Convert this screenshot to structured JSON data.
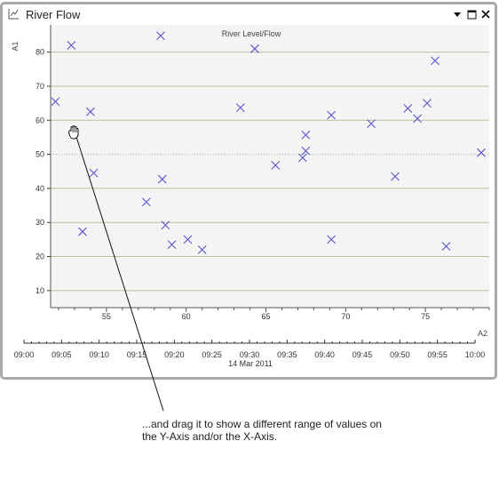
{
  "window": {
    "title": "River Flow",
    "icon": "chart-icon",
    "controls": [
      "menu-dropdown-icon",
      "maximize-icon",
      "close-icon"
    ]
  },
  "annotation": {
    "line1": "...and drag it to show a different range of values on",
    "line2": "the Y-Axis and/or the X-Axis."
  },
  "cursor": "hand-grab-icon",
  "chart_data": {
    "type": "scatter",
    "title": "River Level/Flow",
    "ylabel": "A1",
    "xlabel": "A2",
    "ylim": [
      5,
      88
    ],
    "xlim": [
      51.5,
      79
    ],
    "yticks": [
      10,
      20,
      30,
      40,
      50,
      60,
      70,
      80
    ],
    "xticks": [
      55,
      60,
      65,
      70,
      75
    ],
    "grid": true,
    "marker": "x",
    "marker_color": "#5a55cc",
    "points": [
      [
        51.8,
        65.5
      ],
      [
        52.8,
        82
      ],
      [
        53.5,
        27.3
      ],
      [
        54.0,
        62.5
      ],
      [
        54.2,
        44.5
      ],
      [
        57.5,
        36
      ],
      [
        58.4,
        84.8
      ],
      [
        58.5,
        42.7
      ],
      [
        58.7,
        29.2
      ],
      [
        59.1,
        23.5
      ],
      [
        60.1,
        25
      ],
      [
        61.0,
        22
      ],
      [
        63.4,
        63.7
      ],
      [
        64.3,
        81
      ],
      [
        65.6,
        46.8
      ],
      [
        67.3,
        49
      ],
      [
        67.5,
        55.7
      ],
      [
        67.5,
        51
      ],
      [
        69.1,
        61.5
      ],
      [
        69.1,
        25
      ],
      [
        71.6,
        59
      ],
      [
        73.1,
        43.5
      ],
      [
        73.9,
        63.5
      ],
      [
        74.5,
        60.5
      ],
      [
        75.1,
        65
      ],
      [
        75.6,
        77.5
      ],
      [
        76.3,
        23
      ],
      [
        78.5,
        50.5
      ]
    ],
    "time_axis": {
      "labels": [
        "09:00",
        "09:05",
        "09:10",
        "09:15",
        "09:20",
        "09:25",
        "09:30",
        "09:35",
        "09:40",
        "09:45",
        "09:50",
        "09:55",
        "10:00"
      ],
      "date": "14 Mar 2011"
    }
  }
}
